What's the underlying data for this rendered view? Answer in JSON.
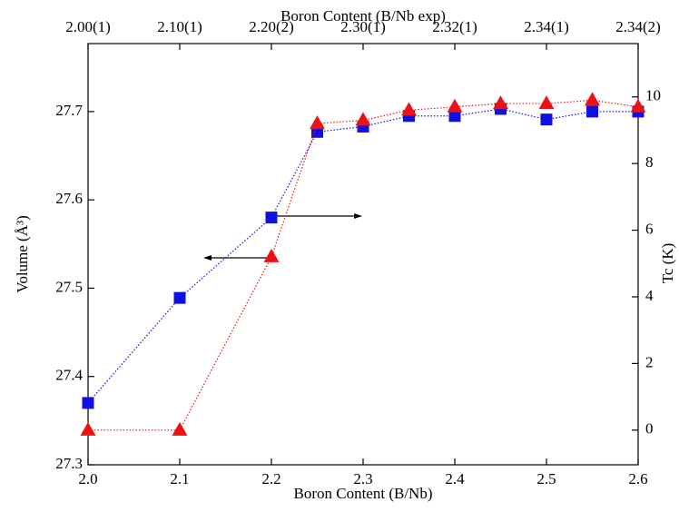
{
  "chart_data": {
    "type": "line",
    "xlabel": "Boron Content (B/Nb)",
    "x2label": "Boron Content (B/Nb exp)",
    "ylabel": "Volume (Å³)",
    "y2label": "Tc (K)",
    "xlim": [
      2.0,
      2.6
    ],
    "xticks": [
      {
        "value": 2.0,
        "label": "2.0"
      },
      2.1,
      2.2,
      2.3,
      2.4,
      2.5,
      2.6
    ],
    "x2ticks": [
      {
        "value": 2.0,
        "label": "2.00(1)"
      },
      {
        "value": 2.1,
        "label": "2.10(1)"
      },
      {
        "value": 2.2,
        "label": "2.20(2)"
      },
      {
        "value": 2.3,
        "label": "2.30(1)"
      },
      {
        "value": 2.4,
        "label": "2.32(1)"
      },
      {
        "value": 2.5,
        "label": "2.34(1)"
      },
      {
        "value": 2.6,
        "label": "2.34(2)"
      }
    ],
    "ylim": [
      27.3,
      27.777
    ],
    "yticks": [
      27.3,
      27.4,
      27.5,
      27.6,
      27.7
    ],
    "y2lim": [
      -1.04,
      11.6
    ],
    "y2ticks": [
      0,
      2,
      4,
      6,
      8,
      10
    ],
    "series": [
      {
        "name": "Volume",
        "color": "#1010e0",
        "marker": "square",
        "axis": "y",
        "x": [
          2.0,
          2.1,
          2.2,
          2.25,
          2.3,
          2.35,
          2.4,
          2.45,
          2.5,
          2.55,
          2.6
        ],
        "values": [
          27.37,
          27.489,
          27.58,
          27.677,
          27.683,
          27.695,
          27.695,
          27.703,
          27.691,
          27.7,
          27.7
        ]
      },
      {
        "name": "Tc",
        "color": "#ee1111",
        "marker": "triangle",
        "axis": "y2",
        "x": [
          2.0,
          2.1,
          2.2,
          2.25,
          2.3,
          2.35,
          2.4,
          2.45,
          2.5,
          2.55,
          2.6
        ],
        "values": [
          0,
          0,
          5.2,
          9.2,
          9.3,
          9.6,
          9.7,
          9.8,
          9.8,
          9.9,
          9.7
        ]
      }
    ]
  }
}
